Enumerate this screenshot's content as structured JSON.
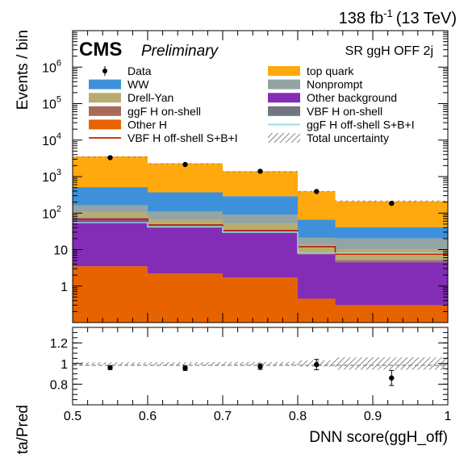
{
  "header": {
    "lumi_value": "138 fb",
    "lumi_exponent": "-1",
    "energy": "(13 TeV)",
    "experiment": "CMS",
    "status": "Preliminary",
    "region": "SR ggH OFF 2j"
  },
  "chart_data": [
    {
      "type": "bar",
      "stacked": true,
      "scale": "log",
      "ylabel": "Events / bin",
      "ylim": [
        0.1,
        10000000
      ],
      "yticks": [
        {
          "value": 1,
          "label": "1"
        },
        {
          "value": 10,
          "label": "10"
        },
        {
          "value": 100,
          "label": "10",
          "exp": "2"
        },
        {
          "value": 1000,
          "label": "10",
          "exp": "3"
        },
        {
          "value": 10000,
          "label": "10",
          "exp": "4"
        },
        {
          "value": 100000,
          "label": "10",
          "exp": "5"
        },
        {
          "value": 1000000,
          "label": "10",
          "exp": "6"
        }
      ],
      "xlim": [
        0.5,
        1.0
      ],
      "bin_edges": [
        0.5,
        0.6,
        0.7,
        0.8,
        0.85,
        1.0
      ],
      "series": [
        {
          "name": "Other H",
          "color": "#e76300",
          "values": [
            3.5,
            2.2,
            1.7,
            0.45,
            0.3
          ]
        },
        {
          "name": "Other background",
          "color": "#832db6",
          "values": [
            60,
            40,
            28,
            7,
            4.2
          ]
        },
        {
          "name": "ggF H on-shell",
          "color": "#a96b59",
          "values": [
            8,
            6,
            4,
            0.7,
            0.5
          ]
        },
        {
          "name": "VBF H on-shell",
          "color": "#717581",
          "values": [
            3,
            2,
            1.5,
            0.3,
            0.2
          ]
        },
        {
          "name": "Drell-Yan",
          "color": "#b9ac70",
          "values": [
            30,
            15,
            15,
            5,
            5
          ]
        },
        {
          "name": "Nonprompt",
          "color": "#94a4a2",
          "values": [
            60,
            45,
            40,
            8,
            10
          ]
        },
        {
          "name": "WW",
          "color": "#3f90da",
          "values": [
            350,
            260,
            200,
            45,
            21
          ]
        },
        {
          "name": "top quark",
          "color": "#ffa90e",
          "values": [
            3050,
            1930,
            1110,
            330,
            170
          ]
        }
      ],
      "signal_lines": [
        {
          "name": "VBF H off-shell S+B+I",
          "color": "#bd1f01",
          "values": [
            68,
            47,
            33,
            12,
            7.5
          ]
        },
        {
          "name": "ggF H off-shell S+B+I",
          "color": "#92dadd",
          "values": [
            55,
            42,
            30,
            8,
            8
          ]
        }
      ],
      "data": {
        "name": "Data",
        "x": [
          0.55,
          0.65,
          0.75,
          0.825,
          0.925
        ],
        "y": [
          3300,
          2150,
          1400,
          390,
          185
        ]
      },
      "uncertainty_label": "Total uncertainty",
      "legend_left": [
        "Data",
        "WW",
        "Drell-Yan",
        "ggF H on-shell",
        "Other H",
        "VBF H off-shell S+B+I"
      ],
      "legend_right": [
        "top quark",
        "Nonprompt",
        "Other background",
        "VBF H on-shell",
        "ggF H off-shell S+B+I",
        "Total uncertainty"
      ]
    },
    {
      "type": "scatter",
      "ylabel": "Data/Pred",
      "xlabel": "DNN score(ggH_off)",
      "ylim": [
        0.6,
        1.35
      ],
      "yticks": [
        "0.8",
        "1",
        "1.2"
      ],
      "xticks": [
        "0.5",
        "0.6",
        "0.7",
        "0.8",
        "0.9",
        "1"
      ],
      "x": [
        0.55,
        0.65,
        0.75,
        0.825,
        0.925
      ],
      "y": [
        0.96,
        0.955,
        0.97,
        0.99,
        0.86
      ],
      "yerr": [
        0.018,
        0.022,
        0.027,
        0.05,
        0.073
      ],
      "band_err": [
        0.012,
        0.014,
        0.016,
        0.03,
        0.06
      ]
    }
  ]
}
